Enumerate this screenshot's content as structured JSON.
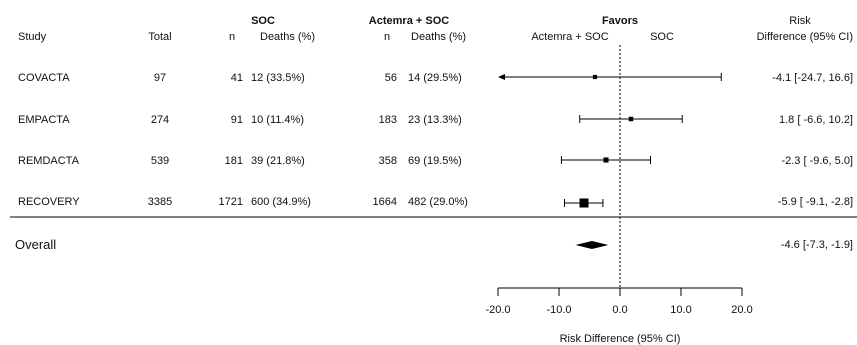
{
  "header": {
    "study_label": "Study",
    "total_label": "Total",
    "soc_group_label": "SOC",
    "soc_n_label": "n",
    "soc_deaths_label": "Deaths (%)",
    "act_group_label": "Actemra + SOC",
    "act_n_label": "n",
    "act_deaths_label": "Deaths (%)",
    "favors_label": "Favors",
    "favors_left": "Actemra + SOC",
    "favors_right": "SOC",
    "rd_line1": "Risk",
    "rd_line2": "Difference (95% CI)"
  },
  "rows": [
    {
      "study": "COVACTA",
      "total": "97",
      "soc_n": "41",
      "soc_deaths": "12 (33.5%)",
      "act_n": "56",
      "act_deaths": "14 (29.5%)",
      "rd_text": "-4.1 [-24.7, 16.6]"
    },
    {
      "study": "EMPACTA",
      "total": "274",
      "soc_n": "91",
      "soc_deaths": "10 (11.4%)",
      "act_n": "183",
      "act_deaths": "23 (13.3%)",
      "rd_text": "1.8 [ -6.6, 10.2]"
    },
    {
      "study": "REMDACTA",
      "total": "539",
      "soc_n": "181",
      "soc_deaths": "39 (21.8%)",
      "act_n": "358",
      "act_deaths": "69 (19.5%)",
      "rd_text": "-2.3 [ -9.6,  5.0]"
    },
    {
      "study": "RECOVERY",
      "total": "3385",
      "soc_n": "1721",
      "soc_deaths": "600 (34.9%)",
      "act_n": "1664",
      "act_deaths": "482 (29.0%)",
      "rd_text": "-5.9 [ -9.1, -2.8]"
    }
  ],
  "overall": {
    "label": "Overall",
    "rd_text": "-4.6 [-7.3, -1.9]"
  },
  "chart_data": {
    "type": "forest",
    "xlabel": "Risk Difference (95% CI)",
    "xlim": [
      -20,
      20
    ],
    "xticks": [
      "-20.0",
      "-10.0",
      "0.0",
      "10.0",
      "20.0"
    ],
    "xtick_values": [
      -20,
      -10,
      0,
      10,
      20
    ],
    "reference_line": 0,
    "studies": [
      {
        "name": "COVACTA",
        "estimate": -4.1,
        "lower": -24.7,
        "upper": 16.6,
        "weight": 0.2,
        "clipped_left": true
      },
      {
        "name": "EMPACTA",
        "estimate": 1.8,
        "lower": -6.6,
        "upper": 10.2,
        "weight": 0.25
      },
      {
        "name": "REMDACTA",
        "estimate": -2.3,
        "lower": -9.6,
        "upper": 5.0,
        "weight": 0.35
      },
      {
        "name": "RECOVERY",
        "estimate": -5.9,
        "lower": -9.1,
        "upper": -2.8,
        "weight": 1.0
      }
    ],
    "overall": {
      "estimate": -4.6,
      "lower": -7.3,
      "upper": -1.9
    }
  }
}
